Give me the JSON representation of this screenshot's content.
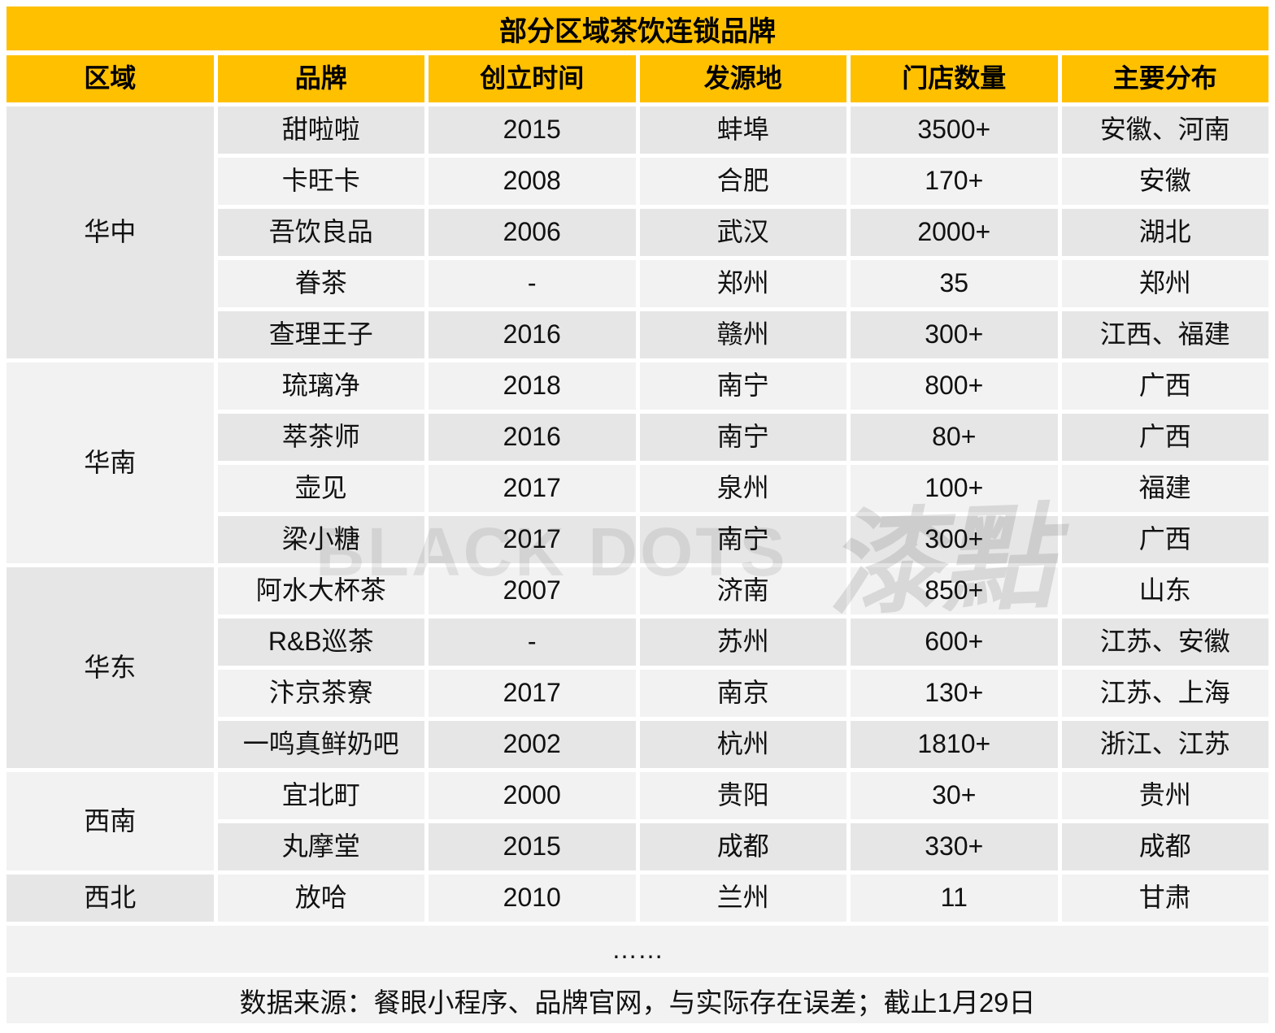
{
  "title": "部分区域茶饮连锁品牌",
  "columns": [
    "区域",
    "品牌",
    "创立时间",
    "发源地",
    "门店数量",
    "主要分布"
  ],
  "regions": [
    {
      "name": "华中",
      "brands": [
        {
          "brand": "甜啦啦",
          "founded": "2015",
          "origin": "蚌埠",
          "stores": "3500+",
          "distribution": "安徽、河南"
        },
        {
          "brand": "卡旺卡",
          "founded": "2008",
          "origin": "合肥",
          "stores": "170+",
          "distribution": "安徽"
        },
        {
          "brand": "吾饮良品",
          "founded": "2006",
          "origin": "武汉",
          "stores": "2000+",
          "distribution": "湖北"
        },
        {
          "brand": "眷茶",
          "founded": "-",
          "origin": "郑州",
          "stores": "35",
          "distribution": "郑州"
        },
        {
          "brand": "查理王子",
          "founded": "2016",
          "origin": "赣州",
          "stores": "300+",
          "distribution": "江西、福建"
        }
      ]
    },
    {
      "name": "华南",
      "brands": [
        {
          "brand": "琉璃净",
          "founded": "2018",
          "origin": "南宁",
          "stores": "800+",
          "distribution": "广西"
        },
        {
          "brand": "萃茶师",
          "founded": "2016",
          "origin": "南宁",
          "stores": "80+",
          "distribution": "广西"
        },
        {
          "brand": "壶见",
          "founded": "2017",
          "origin": "泉州",
          "stores": "100+",
          "distribution": "福建"
        },
        {
          "brand": "梁小糖",
          "founded": "2017",
          "origin": "南宁",
          "stores": "300+",
          "distribution": "广西"
        }
      ]
    },
    {
      "name": "华东",
      "brands": [
        {
          "brand": "阿水大杯茶",
          "founded": "2007",
          "origin": "济南",
          "stores": "850+",
          "distribution": "山东"
        },
        {
          "brand": "R&B巡茶",
          "founded": "-",
          "origin": "苏州",
          "stores": "600+",
          "distribution": "江苏、安徽"
        },
        {
          "brand": "汴京茶寮",
          "founded": "2017",
          "origin": "南京",
          "stores": "130+",
          "distribution": "江苏、上海"
        },
        {
          "brand": "一鸣真鲜奶吧",
          "founded": "2002",
          "origin": "杭州",
          "stores": "1810+",
          "distribution": "浙江、江苏"
        }
      ]
    },
    {
      "name": "西南",
      "brands": [
        {
          "brand": "宜北町",
          "founded": "2000",
          "origin": "贵阳",
          "stores": "30+",
          "distribution": "贵州"
        },
        {
          "brand": "丸摩堂",
          "founded": "2015",
          "origin": "成都",
          "stores": "330+",
          "distribution": "成都"
        }
      ]
    },
    {
      "name": "西北",
      "brands": [
        {
          "brand": "放哈",
          "founded": "2010",
          "origin": "兰州",
          "stores": "11",
          "distribution": "甘肃"
        }
      ]
    }
  ],
  "ellipsis": "……",
  "footer": "数据来源：餐眼小程序、品牌官网，与实际存在误差；截止1月29日",
  "watermark": {
    "latin": "BLACK DOTS",
    "cjk": "漆點"
  },
  "colors": {
    "accent": "#FFC000",
    "band_dark": "#E7E6E6",
    "band_light": "#F2F2F2"
  },
  "chart_data": {
    "type": "table",
    "title": "部分区域茶饮连锁品牌",
    "columns": [
      "区域",
      "品牌",
      "创立时间",
      "发源地",
      "门店数量",
      "主要分布"
    ],
    "rows": [
      [
        "华中",
        "甜啦啦",
        "2015",
        "蚌埠",
        "3500+",
        "安徽、河南"
      ],
      [
        "华中",
        "卡旺卡",
        "2008",
        "合肥",
        "170+",
        "安徽"
      ],
      [
        "华中",
        "吾饮良品",
        "2006",
        "武汉",
        "2000+",
        "湖北"
      ],
      [
        "华中",
        "眷茶",
        "-",
        "郑州",
        "35",
        "郑州"
      ],
      [
        "华中",
        "查理王子",
        "2016",
        "赣州",
        "300+",
        "江西、福建"
      ],
      [
        "华南",
        "琉璃净",
        "2018",
        "南宁",
        "800+",
        "广西"
      ],
      [
        "华南",
        "萃茶师",
        "2016",
        "南宁",
        "80+",
        "广西"
      ],
      [
        "华南",
        "壶见",
        "2017",
        "泉州",
        "100+",
        "福建"
      ],
      [
        "华南",
        "梁小糖",
        "2017",
        "南宁",
        "300+",
        "广西"
      ],
      [
        "华东",
        "阿水大杯茶",
        "2007",
        "济南",
        "850+",
        "山东"
      ],
      [
        "华东",
        "R&B巡茶",
        "-",
        "苏州",
        "600+",
        "江苏、安徽"
      ],
      [
        "华东",
        "汴京茶寮",
        "2017",
        "南京",
        "130+",
        "江苏、上海"
      ],
      [
        "华东",
        "一鸣真鲜奶吧",
        "2002",
        "杭州",
        "1810+",
        "浙江、江苏"
      ],
      [
        "西南",
        "宜北町",
        "2000",
        "贵阳",
        "30+",
        "贵州"
      ],
      [
        "西南",
        "丸摩堂",
        "2015",
        "成都",
        "330+",
        "成都"
      ],
      [
        "西北",
        "放哈",
        "2010",
        "兰州",
        "11",
        "甘肃"
      ]
    ],
    "footnote": "数据来源：餐眼小程序、品牌官网，与实际存在误差；截止1月29日"
  }
}
